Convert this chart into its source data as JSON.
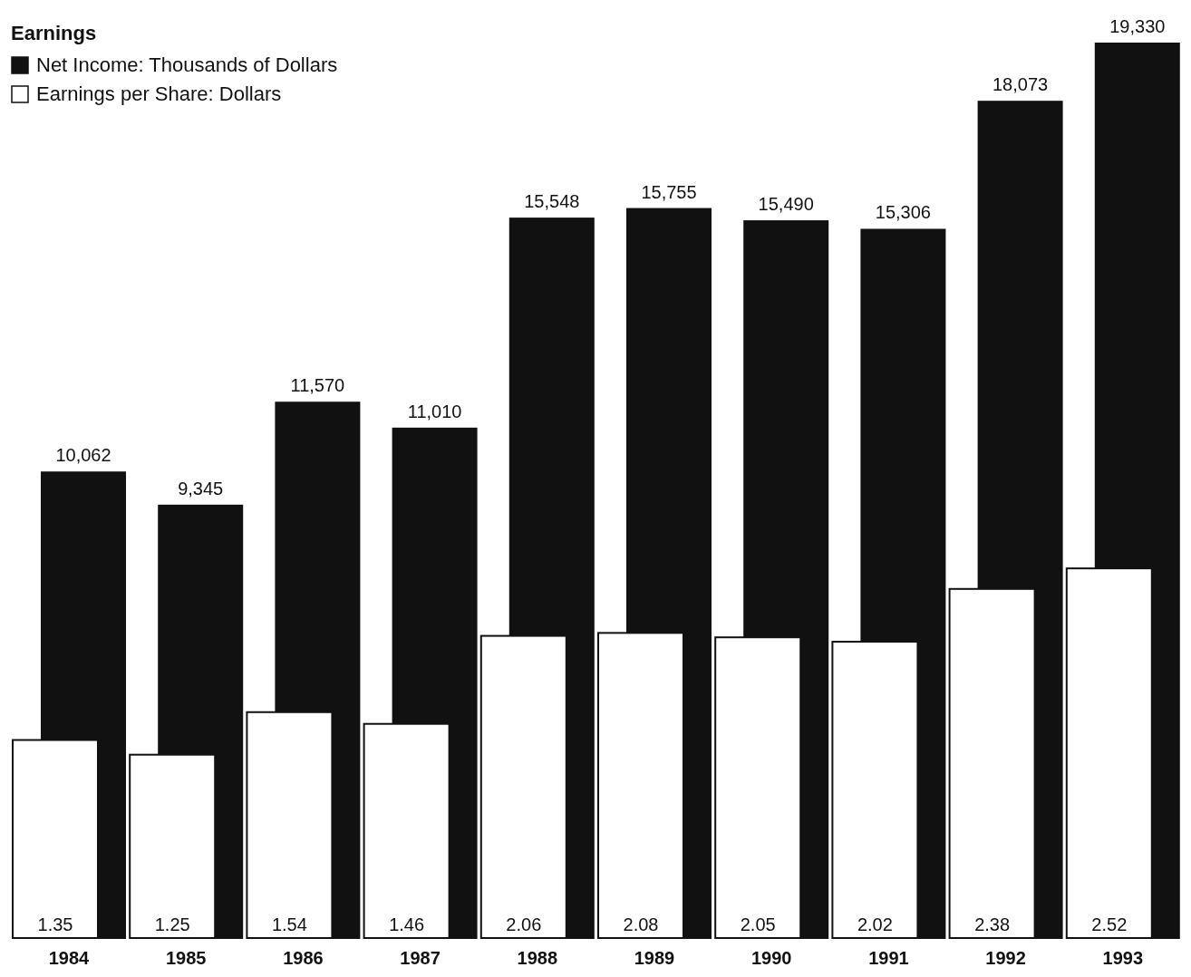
{
  "chart_data": {
    "type": "bar",
    "title": "Earnings",
    "categories": [
      "1984",
      "1985",
      "1986",
      "1987",
      "1988",
      "1989",
      "1990",
      "1991",
      "1992",
      "1993"
    ],
    "series": [
      {
        "name": "Net Income: Thousands of Dollars",
        "color": "#111111",
        "values": [
          10062,
          9345,
          11570,
          11010,
          15548,
          15755,
          15490,
          15306,
          18073,
          19330
        ],
        "value_labels": [
          "10,062",
          "9,345",
          "11,570",
          "11,010",
          "15,548",
          "15,755",
          "15,490",
          "15,306",
          "18,073",
          "19,330"
        ]
      },
      {
        "name": "Earnings per Share: Dollars",
        "color": "#ffffff",
        "axis": "y2",
        "values": [
          1.35,
          1.25,
          1.54,
          1.46,
          2.06,
          2.08,
          2.05,
          2.02,
          2.38,
          2.52
        ],
        "value_labels": [
          "1.35",
          "1.25",
          "1.54",
          "1.46",
          "2.06",
          "2.08",
          "2.05",
          "2.02",
          "2.38",
          "2.52"
        ]
      }
    ],
    "legend": "top left"
  }
}
